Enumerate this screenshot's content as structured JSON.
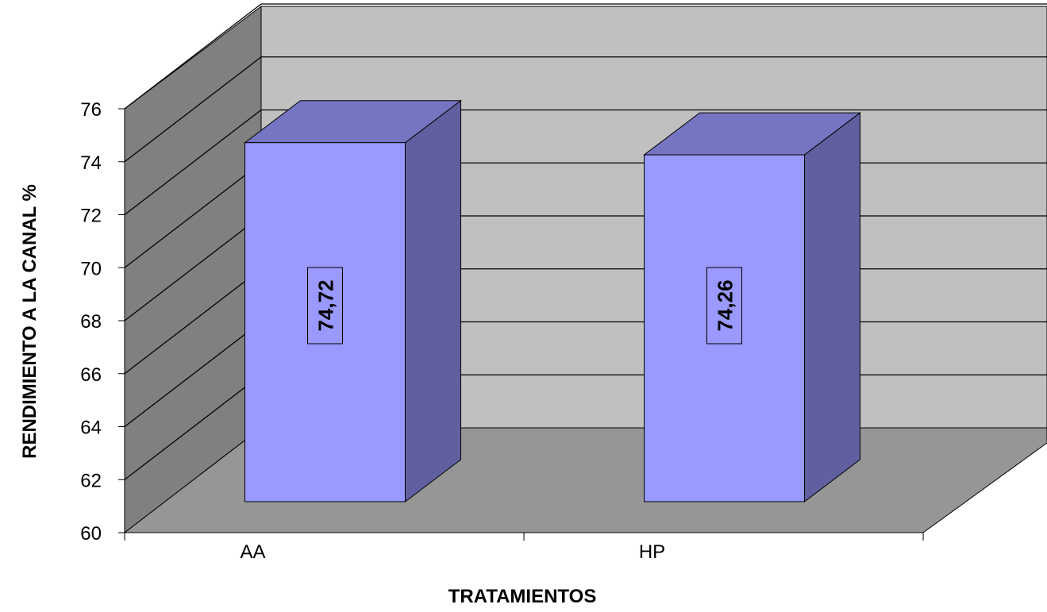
{
  "chart_data": {
    "type": "bar",
    "categories": [
      "AA",
      "HP"
    ],
    "values": [
      74.72,
      74.26
    ],
    "value_labels": [
      "74,72",
      "74,26"
    ],
    "xlabel": "TRATAMIENTOS",
    "ylabel": "RENDIMIENTO A LA CANAL %",
    "ylim": [
      60,
      76
    ],
    "yticks": [
      60,
      62,
      64,
      66,
      68,
      70,
      72,
      74,
      76
    ],
    "grid": true,
    "legend": "none",
    "style": "3d-column",
    "colors": {
      "bar_front": "#9999ff",
      "bar_top": "#7575c2",
      "bar_side": "#6060a0",
      "back_wall": "#c0c0c0",
      "side_wall": "#808080",
      "floor": "#969696"
    }
  }
}
